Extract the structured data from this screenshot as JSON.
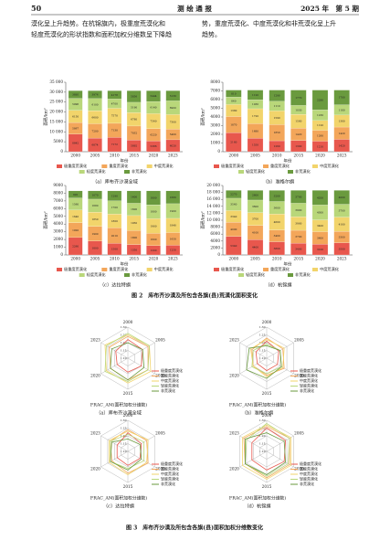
{
  "header": {
    "page": "50",
    "journal": "测 绘 通 报",
    "issue": "2025 年　第 5 期"
  },
  "text": {
    "left": [
      "漠化呈上升趋势。在杭锦旗内，极重度荒漠化和",
      "轻度荒漠化的形状指数和面积加权分维数呈下降趋"
    ],
    "right": [
      "势，重度荒漠化、中度荒漠化和非荒漠化呈上升",
      "趋势。"
    ]
  },
  "figure_captions": [
    "图 2　库布齐沙漠及所包含各旗(县)荒漠化面积变化",
    "图 3　库布齐沙漠及所包含各旗(县)面积加权分维数变化"
  ],
  "chart_data": [
    {
      "type": "bar",
      "stacked": true,
      "caption": "（a）库布齐沙漠全域",
      "xlabel": "年份",
      "ylabel": "面积/km²",
      "categories": [
        "2000",
        "2005",
        "2010",
        "2015",
        "2020",
        "2023"
      ],
      "ylim": [
        0,
        35000
      ],
      "yticks": [
        0,
        5000,
        {
          "value": 10000,
          "label": "10 000"
        },
        {
          "value": 15000,
          "label": "15 000"
        },
        {
          "value": 20000,
          "label": "20 000"
        },
        {
          "value": 25000,
          "label": "25 000"
        },
        {
          "value": 30000,
          "label": "30 000"
        },
        {
          "value": 35000,
          "label": "35 000"
        }
      ],
      "series": [
        {
          "name": "极重度荒漠化",
          "color": "#e8574d",
          "values": [
            8842,
            6874,
            7172,
            5892,
            5386,
            6020
          ]
        },
        {
          "name": "重度荒漠化",
          "color": "#f3a65a",
          "values": [
            5867,
            7200,
            7130,
            7032,
            6220,
            5400
          ]
        },
        {
          "name": "中度荒漠化",
          "color": "#f2d46b",
          "values": [
            6150,
            6600,
            7570,
            6780,
            7560,
            7300
          ]
        },
        {
          "name": "轻度荒漠化",
          "color": "#b9d77a",
          "values": [
            5996,
            6100,
            4700,
            5190,
            6140,
            6900
          ]
        },
        {
          "name": "非荒漠化",
          "color": "#6a9a3e",
          "values": [
            3895,
            3976,
            4178,
            5856,
            5444,
            5130
          ]
        }
      ]
    },
    {
      "type": "bar",
      "stacked": true,
      "caption": "（b）准格尔旗",
      "xlabel": "年份",
      "ylabel": "面积/km²",
      "categories": [
        "2000",
        "2005",
        "2010",
        "2015",
        "2020",
        "2023"
      ],
      "ylim": [
        0,
        8000
      ],
      "yticks": [
        0,
        1000,
        2000,
        3000,
        4000,
        5000,
        6000,
        7000,
        8000
      ],
      "series": [
        {
          "name": "极重度荒漠化",
          "color": "#e8574d",
          "values": [
            2180,
            1550,
            1260,
            1300,
            1210,
            1420
          ]
        },
        {
          "name": "重度荒漠化",
          "color": "#f3a65a",
          "values": [
            1870,
            1680,
            1850,
            1420,
            1260,
            1420
          ]
        },
        {
          "name": "中度荒漠化",
          "color": "#f2d46b",
          "values": [
            1380,
            1720,
            1590,
            1580,
            1120,
            1380
          ]
        },
        {
          "name": "轻度荒漠化",
          "color": "#b9d77a",
          "values": [
            860,
            1030,
            1110,
            1030,
            1230,
            1180
          ]
        },
        {
          "name": "非荒漠化",
          "color": "#6a9a3e",
          "values": [
            810,
            1120,
            1290,
            1770,
            2280,
            1700
          ]
        }
      ]
    },
    {
      "type": "bar",
      "stacked": true,
      "caption": "（c）达拉特旗",
      "xlabel": "年份",
      "ylabel": "面积/km²",
      "categories": [
        "2000",
        "2005",
        "2010",
        "2015",
        "2020",
        "2023"
      ],
      "ylim": [
        0,
        9000
      ],
      "yticks": [
        0,
        1000,
        2000,
        3000,
        4000,
        5000,
        6000,
        7000,
        8000,
        9000
      ],
      "series": [
        {
          "name": "极重度荒漠化",
          "color": "#e8574d",
          "values": [
            2260,
            1800,
            1500,
            1350,
            1200,
            1250
          ]
        },
        {
          "name": "重度荒漠化",
          "color": "#f3a65a",
          "values": [
            1920,
            1900,
            2010,
            1800,
            1600,
            1650
          ]
        },
        {
          "name": "中度荒漠化",
          "color": "#f2d46b",
          "values": [
            1640,
            1850,
            1800,
            1950,
            1900,
            1840
          ]
        },
        {
          "name": "轻度荒漠化",
          "color": "#b9d77a",
          "values": [
            1560,
            1680,
            1700,
            1600,
            1800,
            1900
          ]
        },
        {
          "name": "非荒漠化",
          "color": "#6a9a3e",
          "values": [
            920,
            1070,
            1290,
            1600,
            1800,
            1660
          ]
        }
      ]
    },
    {
      "type": "bar",
      "stacked": true,
      "caption": "（d）杭锦旗",
      "xlabel": "年份",
      "ylabel": "面积/km²",
      "categories": [
        "2000",
        "2005",
        "2010",
        "2015",
        "2020",
        "2023"
      ],
      "ylim": [
        0,
        20000
      ],
      "yticks": [
        0,
        2000,
        4000,
        6000,
        8000,
        {
          "value": 10000,
          "label": "10 000"
        },
        {
          "value": 12000,
          "label": "12 000"
        },
        {
          "value": 14000,
          "label": "14 000"
        },
        {
          "value": 16000,
          "label": "16 000"
        },
        {
          "value": 18000,
          "label": "18 000"
        },
        {
          "value": 20000,
          "label": "20 000"
        }
      ],
      "series": [
        {
          "name": "极重度荒漠化",
          "color": "#e8574d",
          "values": [
            5340,
            4400,
            3800,
            3400,
            3100,
            3500
          ]
        },
        {
          "name": "重度荒漠化",
          "color": "#f3a65a",
          "values": [
            4090,
            4100,
            3400,
            3700,
            3600,
            3300
          ]
        },
        {
          "name": "中度荒漠化",
          "color": "#f2d46b",
          "values": [
            3340,
            3700,
            4600,
            3900,
            3400,
            4100
          ]
        },
        {
          "name": "轻度荒漠化",
          "color": "#b9d77a",
          "values": [
            3560,
            3600,
            3600,
            3900,
            4300,
            3700
          ]
        },
        {
          "name": "非荒漠化",
          "color": "#6a9a3e",
          "values": [
            2270,
            2800,
            3200,
            3700,
            4200,
            4000
          ]
        }
      ]
    },
    {
      "type": "radar",
      "caption": "（a）库布齐沙漠全域",
      "axis_label": "FRAC_AM(面积加权分维数)",
      "categories": [
        "2000",
        "2005",
        "2010",
        "2015",
        "2020",
        "2023"
      ],
      "rlim": [
        1.1,
        1.3
      ],
      "rticks": [
        {
          "value": 1.1,
          "label": "1.10"
        },
        1.15,
        {
          "value": 1.2,
          "label": "1.20"
        },
        1.25,
        {
          "value": 1.3,
          "label": "1.30"
        }
      ],
      "series": [
        {
          "name": "极重度荒漠化",
          "color": "#e8574d",
          "values": [
            1.22,
            1.21,
            1.2,
            1.19,
            1.18,
            1.19
          ]
        },
        {
          "name": "重度荒漠化",
          "color": "#f3a65a",
          "values": [
            1.24,
            1.25,
            1.25,
            1.24,
            1.23,
            1.24
          ]
        },
        {
          "name": "中度荒漠化",
          "color": "#f2d46b",
          "values": [
            1.25,
            1.26,
            1.27,
            1.26,
            1.26,
            1.27
          ]
        },
        {
          "name": "轻度荒漠化",
          "color": "#b9d77a",
          "values": [
            1.26,
            1.26,
            1.25,
            1.25,
            1.27,
            1.26
          ]
        },
        {
          "name": "非荒漠化",
          "color": "#6a9a3e",
          "values": [
            1.2,
            1.21,
            1.22,
            1.24,
            1.23,
            1.22
          ]
        }
      ]
    },
    {
      "type": "radar",
      "caption": "（b）准格尔旗",
      "axis_label": "FRAC_AM(面积加权分维数)",
      "categories": [
        "2000",
        "2005",
        "2010",
        "2015",
        "2020",
        "2023"
      ],
      "rlim": [
        1.1,
        1.3
      ],
      "rticks": [
        {
          "value": 1.1,
          "label": "1.10"
        },
        1.15,
        {
          "value": 1.2,
          "label": "1.20"
        },
        1.25,
        {
          "value": 1.3,
          "label": "1.30"
        }
      ],
      "series": [
        {
          "name": "极重度荒漠化",
          "color": "#e8574d",
          "values": [
            1.21,
            1.19,
            1.18,
            1.18,
            1.17,
            1.18
          ]
        },
        {
          "name": "重度荒漠化",
          "color": "#f3a65a",
          "values": [
            1.23,
            1.22,
            1.23,
            1.21,
            1.2,
            1.21
          ]
        },
        {
          "name": "中度荒漠化",
          "color": "#f2d46b",
          "values": [
            1.22,
            1.23,
            1.22,
            1.22,
            1.2,
            1.22
          ]
        },
        {
          "name": "轻度荒漠化",
          "color": "#b9d77a",
          "values": [
            1.19,
            1.2,
            1.21,
            1.2,
            1.21,
            1.2
          ]
        },
        {
          "name": "非荒漠化",
          "color": "#6a9a3e",
          "values": [
            1.18,
            1.2,
            1.21,
            1.23,
            1.25,
            1.23
          ]
        }
      ]
    },
    {
      "type": "radar",
      "caption": "（c）达拉特旗",
      "axis_label": "FRAC_AM(面积加权分维数)",
      "categories": [
        "2000",
        "2005",
        "2010",
        "2015",
        "2020",
        "2023"
      ],
      "rlim": [
        1.1,
        1.3
      ],
      "rticks": [
        {
          "value": 1.1,
          "label": "1.10"
        },
        1.15,
        {
          "value": 1.2,
          "label": "1.20"
        },
        1.25,
        {
          "value": 1.3,
          "label": "1.30"
        }
      ],
      "series": [
        {
          "name": "极重度荒漠化",
          "color": "#e8574d",
          "values": [
            1.22,
            1.2,
            1.19,
            1.19,
            1.18,
            1.18
          ]
        },
        {
          "name": "重度荒漠化",
          "color": "#f3a65a",
          "values": [
            1.24,
            1.24,
            1.25,
            1.24,
            1.22,
            1.23
          ]
        },
        {
          "name": "中度荒漠化",
          "color": "#f2d46b",
          "values": [
            1.23,
            1.25,
            1.24,
            1.25,
            1.24,
            1.24
          ]
        },
        {
          "name": "轻度荒漠化",
          "color": "#b9d77a",
          "values": [
            1.21,
            1.22,
            1.22,
            1.21,
            1.23,
            1.23
          ]
        },
        {
          "name": "非荒漠化",
          "color": "#6a9a3e",
          "values": [
            1.18,
            1.19,
            1.2,
            1.22,
            1.23,
            1.22
          ]
        }
      ]
    },
    {
      "type": "radar",
      "caption": "（d）杭锦旗",
      "axis_label": "FRAC_AM(面积加权分维数)",
      "categories": [
        "2000",
        "2005",
        "2010",
        "2015",
        "2020",
        "2023"
      ],
      "rlim": [
        1.1,
        1.3
      ],
      "rticks": [
        {
          "value": 1.1,
          "label": "1.10"
        },
        1.15,
        {
          "value": 1.2,
          "label": "1.20"
        },
        1.25,
        {
          "value": 1.3,
          "label": "1.30"
        }
      ],
      "series": [
        {
          "name": "极重度荒漠化",
          "color": "#e8574d",
          "values": [
            1.25,
            1.24,
            1.23,
            1.22,
            1.21,
            1.21
          ]
        },
        {
          "name": "重度荒漠化",
          "color": "#f3a65a",
          "values": [
            1.26,
            1.27,
            1.27,
            1.27,
            1.26,
            1.27
          ]
        },
        {
          "name": "中度荒漠化",
          "color": "#f2d46b",
          "values": [
            1.27,
            1.28,
            1.28,
            1.28,
            1.28,
            1.28
          ]
        },
        {
          "name": "轻度荒漠化",
          "color": "#b9d77a",
          "values": [
            1.28,
            1.27,
            1.26,
            1.26,
            1.26,
            1.25
          ]
        },
        {
          "name": "非荒漠化",
          "color": "#6a9a3e",
          "values": [
            1.22,
            1.23,
            1.24,
            1.25,
            1.26,
            1.26
          ]
        }
      ]
    }
  ]
}
